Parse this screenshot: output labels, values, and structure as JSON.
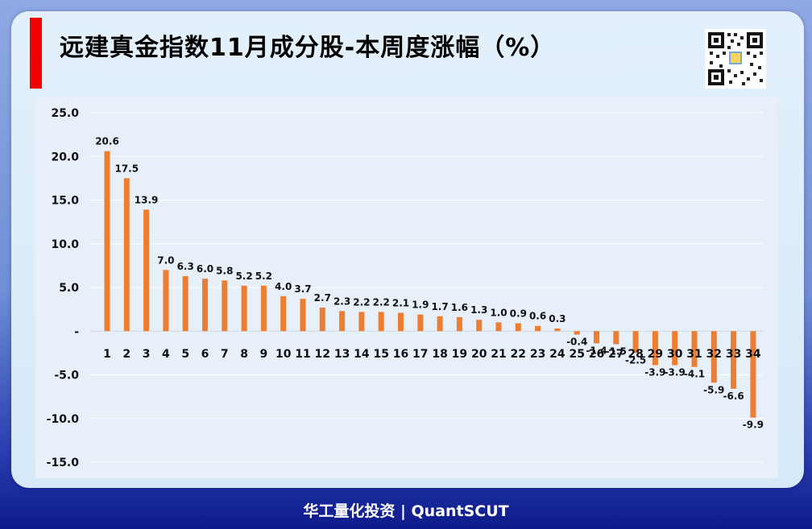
{
  "title": "远建真金指数11月成分股-本周度涨幅（%）",
  "footer": "华工量化投资 | QuantSCUT",
  "colors": {
    "bar": "#ed7d31",
    "accent": "#f00000"
  },
  "chart_data": {
    "type": "bar",
    "title": "远建真金指数11月成分股-本周度涨幅（%）",
    "categories": [
      "1",
      "2",
      "3",
      "4",
      "5",
      "6",
      "7",
      "8",
      "9",
      "10",
      "11",
      "12",
      "13",
      "14",
      "15",
      "16",
      "17",
      "18",
      "19",
      "20",
      "21",
      "22",
      "23",
      "24",
      "25",
      "26",
      "27",
      "28",
      "29",
      "30",
      "31",
      "32",
      "33",
      "34"
    ],
    "values": [
      20.6,
      17.5,
      13.9,
      7.0,
      6.3,
      6.0,
      5.8,
      5.2,
      5.2,
      4.0,
      3.7,
      2.7,
      2.3,
      2.2,
      2.2,
      2.1,
      1.9,
      1.7,
      1.6,
      1.3,
      1.0,
      0.9,
      0.6,
      0.3,
      -0.4,
      -1.4,
      -1.5,
      -2.5,
      -3.9,
      -3.9,
      -4.1,
      -5.9,
      -6.6,
      -9.9
    ],
    "data_labels": [
      "20.6",
      "17.5",
      "13.9",
      "7.0",
      "6.3",
      "6.0",
      "5.8",
      "5.2",
      "5.2",
      "4.0",
      "3.7",
      "2.7",
      "2.3",
      "2.2",
      "2.2",
      "2.1",
      "1.9",
      "1.7",
      "1.6",
      "1.3",
      "1.0",
      "0.9",
      "0.6",
      "0.3",
      "-0.4",
      "-1.4",
      "-1.5",
      "-2.5",
      "-3.9",
      "-3.9",
      "-4.1",
      "-5.9",
      "-6.6",
      "-9.9"
    ],
    "y_ticks": [
      25,
      20,
      15,
      10,
      5,
      0,
      -5,
      -10,
      -15
    ],
    "y_tick_labels": [
      "25.0",
      "20.0",
      "15.0",
      "10.0",
      "5.0",
      "-",
      "-5.0",
      "-10.0",
      "-15.0"
    ],
    "ylim": [
      -15,
      25
    ],
    "grid": true
  }
}
